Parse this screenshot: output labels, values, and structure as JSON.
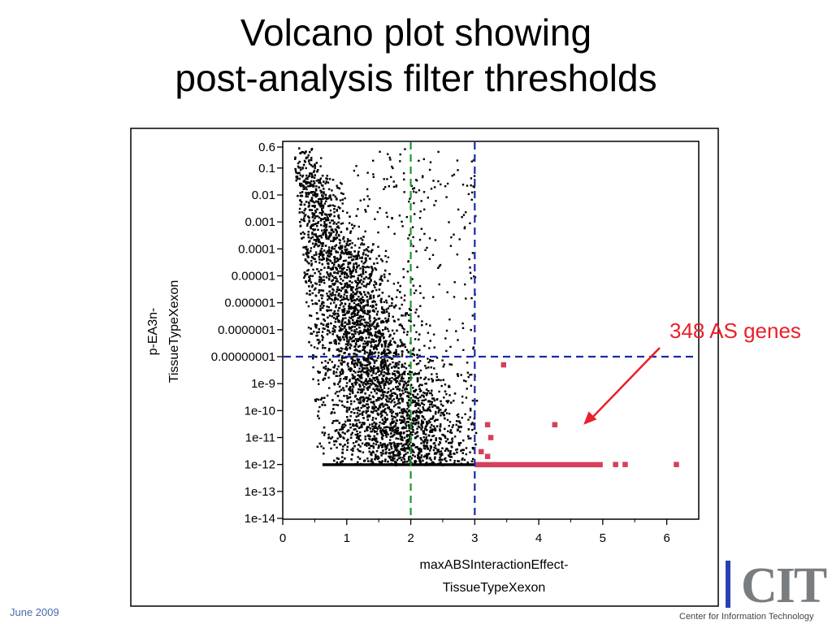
{
  "slide": {
    "title_line1": "Volcano plot showing",
    "title_line2": "post-analysis filter thresholds",
    "footer_date": "June 2009",
    "logo_text": "CIT",
    "logo_subtitle": "Center for Information Technology"
  },
  "chart_data": {
    "type": "scatter",
    "title": "Volcano plot showing post-analysis filter thresholds",
    "xlabel": [
      "maxABSInteractionEffect-",
      "TissueTypeXexon"
    ],
    "ylabel": [
      "p-EA3n-",
      "TissueTypeXexon"
    ],
    "xlim": [
      0,
      6.5
    ],
    "x_ticks": [
      0,
      1,
      2,
      3,
      4,
      5,
      6
    ],
    "y_scale": "log",
    "y_ticks": [
      {
        "value": 0.6,
        "label": "0.6"
      },
      {
        "value": 0.1,
        "label": "0.1"
      },
      {
        "value": 0.01,
        "label": "0.01"
      },
      {
        "value": 0.001,
        "label": "0.001"
      },
      {
        "value": 0.0001,
        "label": "0.0001"
      },
      {
        "value": 1e-05,
        "label": "0.00001"
      },
      {
        "value": 1e-06,
        "label": "0.000001"
      },
      {
        "value": 1e-07,
        "label": "0.0000001"
      },
      {
        "value": 1e-08,
        "label": "0.00000001"
      },
      {
        "value": 1e-09,
        "label": "1e-9"
      },
      {
        "value": 1e-10,
        "label": "1e-10"
      },
      {
        "value": 1e-11,
        "label": "1e-11"
      },
      {
        "value": 1e-12,
        "label": "1e-12"
      },
      {
        "value": 1e-13,
        "label": "1e-13"
      },
      {
        "value": 1e-14,
        "label": "1e-14"
      }
    ],
    "grid": false,
    "thresholds": [
      {
        "axis": "x",
        "value": 2,
        "color": "#1a9a2a",
        "style": "dashed"
      },
      {
        "axis": "x",
        "value": 3,
        "color": "#1a2aa8",
        "style": "dashed"
      },
      {
        "axis": "y",
        "value": 1e-08,
        "color": "#1a2aa8",
        "style": "dashed"
      }
    ],
    "series": [
      {
        "color": "#000000",
        "note_points": "dense cloud of several thousand non-significant exons",
        "values": []
      },
      {
        "color": "#d6405a",
        "values": [
          {
            "x": 3.45,
            "y": 5e-09
          },
          {
            "x": 3.2,
            "y": 3e-11
          },
          {
            "x": 3.25,
            "y": 1e-11
          },
          {
            "x": 4.25,
            "y": 3e-11
          },
          {
            "x": 3.1,
            "y": 3e-12
          },
          {
            "x": 3.2,
            "y": 2e-12
          },
          {
            "x": 5.2,
            "y": 1e-12
          },
          {
            "x": 5.35,
            "y": 1e-12
          },
          {
            "x": 6.15,
            "y": 1e-12
          }
        ],
        "band": {
          "x_from": 3.0,
          "x_to": 5.0,
          "y": 1e-12
        }
      }
    ],
    "annotations": [
      {
        "text": "348 AS genes",
        "color": "#e8202a",
        "points_to": {
          "x": 4.7,
          "y": 3e-11
        }
      }
    ]
  }
}
